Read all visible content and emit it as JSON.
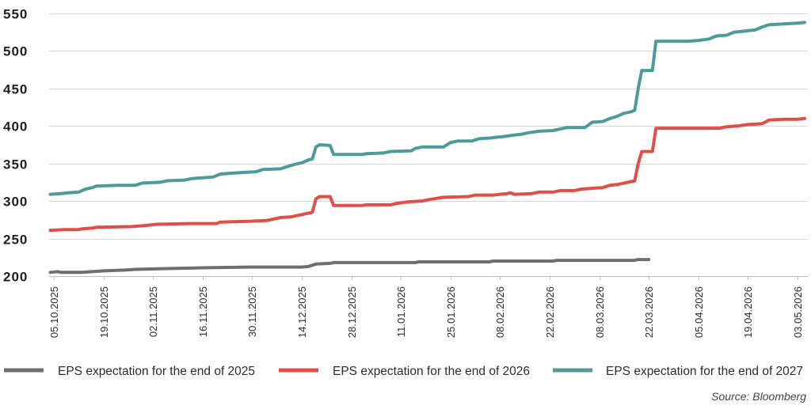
{
  "chart_data": {
    "type": "line",
    "ylim": [
      200,
      550
    ],
    "yticks": [
      200,
      250,
      300,
      350,
      400,
      450,
      500,
      550
    ],
    "xlim": [
      "04.10.2025",
      "05.05.2026"
    ],
    "xticks": [
      "05.10.2025",
      "19.10.2025",
      "02.11.2025",
      "16.11.2025",
      "30.11.2025",
      "14.12.2025",
      "28.12.2025",
      "11.01.2026",
      "25.01.2026",
      "08.02.2026",
      "22.02.2026",
      "08.03.2026",
      "22.03.2026",
      "05.04.2026",
      "19.04.2026",
      "03.05.2026"
    ],
    "grid": "horizontal",
    "legend": "bottom",
    "series": [
      {
        "name": "EPS expectation for the end of 2025",
        "color": "#6e6e6e",
        "dates": [
          "04.10.2025",
          "06.10.2025",
          "07.10.2025",
          "13.10.2025",
          "16.10.2025",
          "19.10.2025",
          "25.10.2025",
          "28.10.2025",
          "06.11.2025",
          "15.11.2025",
          "29.11.2025",
          "14.12.2025",
          "16.12.2025",
          "18.12.2025",
          "22.12.2025",
          "23.12.2025",
          "15.01.2026",
          "16.01.2026",
          "05.02.2026",
          "06.02.2026",
          "23.02.2026",
          "24.02.2026",
          "18.03.2026",
          "19.03.2026",
          "22.03.2026"
        ],
        "values": [
          205,
          206,
          205,
          205,
          206,
          207,
          208,
          209,
          210,
          211,
          212,
          212,
          213,
          216,
          217,
          218,
          218,
          219,
          219,
          220,
          220,
          221,
          221,
          222,
          222
        ]
      },
      {
        "name": "EPS expectation for the end of 2026",
        "color": "#e14e47",
        "dates": [
          "04.10.2025",
          "08.10.2025",
          "12.10.2025",
          "13.10.2025",
          "16.10.2025",
          "17.10.2025",
          "27.10.2025",
          "30.10.2025",
          "01.11.2025",
          "03.11.2025",
          "12.11.2025",
          "20.11.2025",
          "21.11.2025",
          "29.11.2025",
          "04.12.2025",
          "06.12.2025",
          "08.12.2025",
          "11.12.2025",
          "13.12.2025",
          "16.12.2025",
          "17.12.2025",
          "18.12.2025",
          "19.12.2025",
          "22.12.2025",
          "23.12.2025",
          "31.12.2025",
          "01.01.2026",
          "08.01.2026",
          "10.01.2026",
          "13.01.2026",
          "17.01.2026",
          "19.01.2026",
          "23.01.2026",
          "30.01.2026",
          "01.02.2026",
          "06.02.2026",
          "08.02.2026",
          "10.02.2026",
          "11.02.2026",
          "12.02.2026",
          "17.02.2026",
          "19.02.2026",
          "23.02.2026",
          "25.02.2026",
          "01.03.2026",
          "03.03.2026",
          "06.03.2026",
          "09.03.2026",
          "11.03.2026",
          "13.03.2026",
          "15.03.2026",
          "17.03.2026",
          "18.03.2026",
          "19.03.2026",
          "20.03.2026",
          "23.03.2026",
          "24.03.2026",
          "11.04.2026",
          "13.04.2026",
          "16.04.2026",
          "19.04.2026",
          "23.04.2026",
          "25.04.2026",
          "29.04.2026",
          "03.05.2026",
          "05.05.2026"
        ],
        "values": [
          261,
          262,
          262,
          263,
          264,
          265,
          266,
          267,
          268,
          269,
          270,
          270,
          272,
          273,
          274,
          276,
          278,
          279,
          281,
          284,
          285,
          303,
          306,
          306,
          294,
          294,
          295,
          295,
          297,
          299,
          300,
          302,
          305,
          306,
          308,
          308,
          309,
          310,
          311,
          309,
          310,
          312,
          312,
          314,
          314,
          316,
          317,
          318,
          321,
          322,
          324,
          326,
          327,
          350,
          366,
          366,
          397,
          397,
          399,
          400,
          402,
          403,
          408,
          409,
          409,
          410
        ]
      },
      {
        "name": "EPS expectation for the end of 2027",
        "color": "#4c9a9a",
        "dates": [
          "04.10.2025",
          "07.10.2025",
          "09.10.2025",
          "12.10.2025",
          "14.10.2025",
          "16.10.2025",
          "17.10.2025",
          "23.10.2025",
          "28.10.2025",
          "30.10.2025",
          "04.11.2025",
          "06.11.2025",
          "11.11.2025",
          "13.11.2025",
          "16.11.2025",
          "19.11.2025",
          "21.11.2025",
          "24.11.2025",
          "27.11.2025",
          "01.12.2025",
          "03.12.2025",
          "08.12.2025",
          "10.12.2025",
          "12.12.2025",
          "14.12.2025",
          "16.12.2025",
          "17.12.2025",
          "18.12.2025",
          "19.12.2025",
          "22.12.2025",
          "23.12.2025",
          "31.12.2025",
          "01.01.2026",
          "06.01.2026",
          "08.01.2026",
          "14.01.2026",
          "15.01.2026",
          "17.01.2026",
          "23.01.2026",
          "25.01.2026",
          "27.01.2026",
          "31.01.2026",
          "02.02.2026",
          "05.02.2026",
          "09.02.2026",
          "12.02.2026",
          "14.02.2026",
          "16.02.2026",
          "19.02.2026",
          "23.02.2026",
          "25.02.2026",
          "27.02.2026",
          "04.03.2026",
          "06.03.2026",
          "09.03.2026",
          "11.03.2026",
          "13.03.2026",
          "15.03.2026",
          "17.03.2026",
          "18.03.2026",
          "19.03.2026",
          "20.03.2026",
          "23.03.2026",
          "24.03.2026",
          "02.04.2026",
          "05.04.2026",
          "08.04.2026",
          "10.04.2026",
          "13.04.2026",
          "15.04.2026",
          "19.04.2026",
          "21.04.2026",
          "23.04.2026",
          "25.04.2026",
          "29.04.2026",
          "03.05.2026",
          "05.05.2026"
        ],
        "values": [
          309,
          310,
          311,
          312,
          316,
          318,
          320,
          321,
          321,
          324,
          325,
          327,
          328,
          330,
          331,
          332,
          336,
          337,
          338,
          339,
          342,
          343,
          346,
          349,
          351,
          355,
          356,
          372,
          375,
          374,
          362,
          362,
          363,
          364,
          366,
          367,
          370,
          372,
          372,
          378,
          380,
          380,
          383,
          384,
          386,
          388,
          389,
          391,
          393,
          394,
          396,
          398,
          398,
          405,
          406,
          410,
          413,
          417,
          419,
          421,
          450,
          474,
          474,
          513,
          513,
          514,
          516,
          520,
          521,
          525,
          527,
          528,
          532,
          535,
          536,
          537,
          538
        ]
      }
    ]
  },
  "source": "Source: Bloomberg"
}
